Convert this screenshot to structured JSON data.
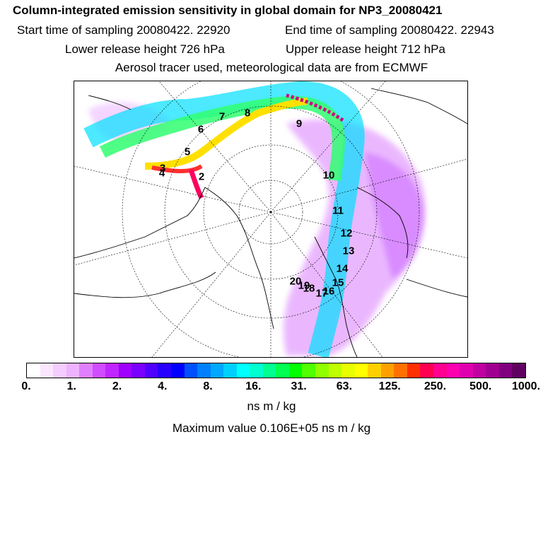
{
  "header": {
    "title": "Column-integrated emission sensitivity in global domain for NP3_20080421",
    "start_label": "Start time of sampling 20080422. 22920",
    "end_label": "End time of sampling 20080422. 22943",
    "lower_label": "Lower release height  726 hPa",
    "upper_label": "Upper release height  712 hPa",
    "tracer_line": "Aerosol tracer used, meteorological data are from ECMWF"
  },
  "map": {
    "trajectory_labels": [
      "2",
      "3",
      "4",
      "5",
      "6",
      "7",
      "8",
      "9",
      "10",
      "11",
      "12",
      "13",
      "14",
      "15",
      "16",
      "17",
      "18",
      "19",
      "20"
    ]
  },
  "colorbar": {
    "colors": [
      "#ffffff",
      "#fbe6ff",
      "#f4ccff",
      "#eeb3ff",
      "#e080ff",
      "#d04dff",
      "#c026ff",
      "#a000ff",
      "#7a00ff",
      "#5000ff",
      "#2800ff",
      "#0000ff",
      "#0050ff",
      "#0080ff",
      "#00a8ff",
      "#00d0ff",
      "#00ffff",
      "#00ffd0",
      "#00ff90",
      "#00ff50",
      "#00ff00",
      "#50ff00",
      "#90ff00",
      "#c0ff00",
      "#e8ff00",
      "#ffff00",
      "#ffd000",
      "#ffa000",
      "#ff7000",
      "#ff3000",
      "#ff0050",
      "#ff0090",
      "#ff00b0",
      "#e000b0",
      "#c000a0",
      "#a00090",
      "#800080",
      "#600060"
    ],
    "tick_labels": [
      "0.",
      "1.",
      "2.",
      "4.",
      "8.",
      "16.",
      "31.",
      "63.",
      "125.",
      "250.",
      "500.",
      "1000."
    ],
    "units": "ns m / kg"
  },
  "footer": {
    "max_value": "Maximum value  0.106E+05 ns m / kg"
  }
}
